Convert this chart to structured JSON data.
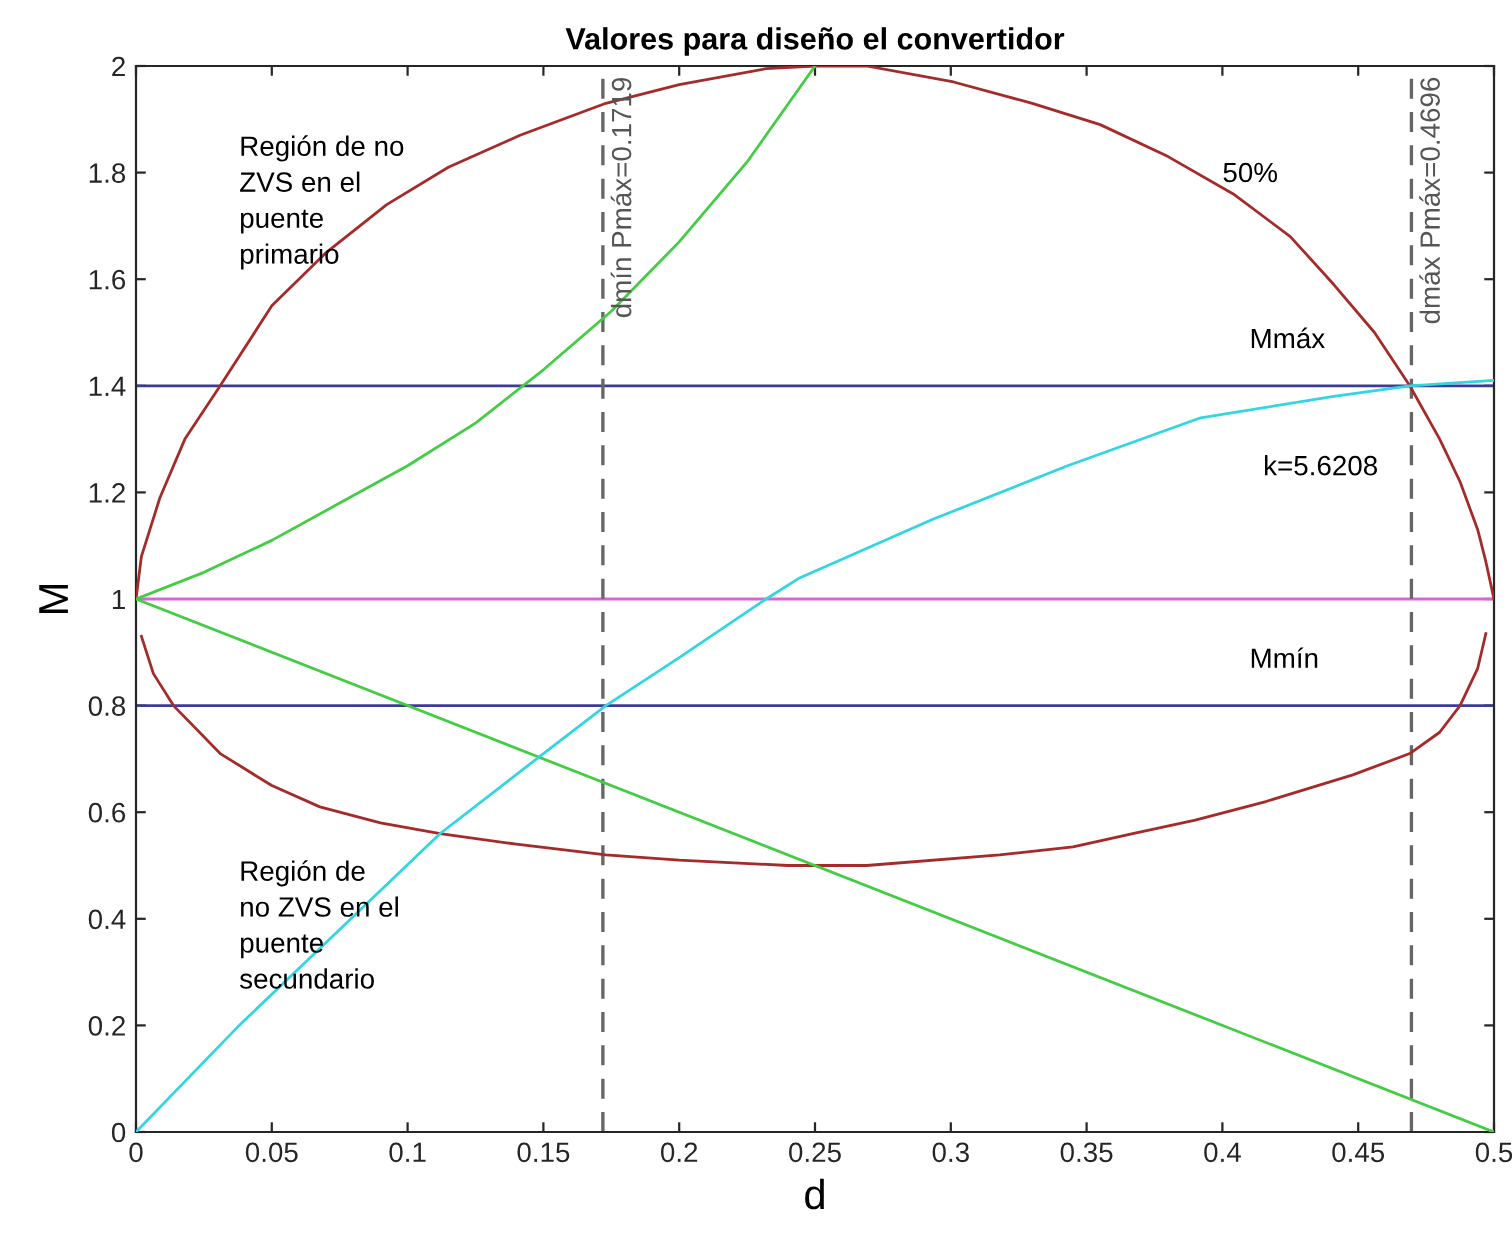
{
  "chart_data": {
    "type": "line",
    "title": "Valores para diseño el convertidor",
    "xlabel": "d",
    "ylabel": "M",
    "xlim": [
      0,
      0.5
    ],
    "ylim": [
      0,
      2
    ],
    "xticks": [
      0,
      0.05,
      0.1,
      0.15,
      0.2,
      0.25,
      0.3,
      0.35,
      0.4,
      0.45,
      0.5
    ],
    "yticks": [
      0,
      0.2,
      0.4,
      0.6,
      0.8,
      1,
      1.2,
      1.4,
      1.6,
      1.8,
      2
    ],
    "grid": false,
    "legend": false,
    "marker": "none",
    "line_style": "solid",
    "series": [
      {
        "color": "#a52a2a",
        "x": [
          0,
          0.002,
          0.0088,
          0.018,
          0.031,
          0.05,
          0.07,
          0.0923,
          0.115,
          0.1414,
          0.173,
          0.2,
          0.232,
          0.25,
          0.269,
          0.301,
          0.33,
          0.355,
          0.38,
          0.404,
          0.425,
          0.441,
          0.456,
          0.469,
          0.48,
          0.4875,
          0.494,
          0.497,
          0.5
        ],
        "values": [
          1,
          1.08,
          1.19,
          1.3,
          1.4,
          1.55,
          1.65,
          1.74,
          1.81,
          1.87,
          1.93,
          1.965,
          1.995,
          2,
          2,
          1.97,
          1.93,
          1.89,
          1.83,
          1.76,
          1.68,
          1.59,
          1.5,
          1.4,
          1.3,
          1.22,
          1.13,
          1.07,
          1
        ]
      },
      {
        "color": "#a52a2a",
        "x": [
          0.002,
          0.0064,
          0.0138,
          0.031,
          0.05,
          0.0677,
          0.09,
          0.112,
          0.14,
          0.173,
          0.2,
          0.24,
          0.269,
          0.318,
          0.345,
          0.367,
          0.39,
          0.416,
          0.448,
          0.469,
          0.48,
          0.4875,
          0.494,
          0.497
        ],
        "values": [
          0.93,
          0.86,
          0.8,
          0.71,
          0.65,
          0.61,
          0.58,
          0.56,
          0.54,
          0.52,
          0.51,
          0.5,
          0.5,
          0.52,
          0.535,
          0.56,
          0.585,
          0.62,
          0.67,
          0.71,
          0.75,
          0.8,
          0.87,
          0.935
        ]
      },
      {
        "color": "#44cc44",
        "x": [
          0,
          0.025,
          0.05,
          0.075,
          0.1,
          0.125,
          0.15,
          0.175,
          0.2,
          0.225,
          0.25
        ],
        "values": [
          1,
          1.05,
          1.11,
          1.18,
          1.25,
          1.33,
          1.43,
          1.54,
          1.67,
          1.82,
          2
        ]
      },
      {
        "color": "#44cc44",
        "x": [
          0,
          0.5
        ],
        "values": [
          1,
          0
        ]
      },
      {
        "color": "#33d6e0",
        "x": [
          0,
          0.038,
          0.075,
          0.112,
          0.1475,
          0.173,
          0.2,
          0.232,
          0.2445,
          0.2936,
          0.343,
          0.392,
          0.441,
          0.469,
          0.5
        ],
        "values": [
          0,
          0.2,
          0.38,
          0.56,
          0.7,
          0.8,
          0.89,
          1.0,
          1.04,
          1.15,
          1.25,
          1.34,
          1.38,
          1.4,
          1.41
        ]
      }
    ],
    "ref_lines": [
      {
        "axis": "y",
        "value": 1.4,
        "label": "Mmáx",
        "color": "#3c3c96",
        "line_style": "solid"
      },
      {
        "axis": "y",
        "value": 0.8,
        "label": "Mmín",
        "color": "#3c3c96",
        "line_style": "solid"
      },
      {
        "axis": "y",
        "value": 1,
        "color": "#d966d9",
        "line_style": "solid"
      },
      {
        "axis": "x",
        "value": 0.1719,
        "label": "dmín Pmáx=0.1719",
        "color": "#666666",
        "line_style": "dashed"
      },
      {
        "axis": "x",
        "value": 0.4696,
        "label": "dmáx Pmáx=0.4696",
        "color": "#666666",
        "line_style": "dashed"
      }
    ],
    "annotations": [
      "50%",
      "k=5.6208",
      "Región de no\nZVS en el\npuente\nprimario",
      "Región de\nno ZVS en el\npuente\nsecundario"
    ]
  }
}
